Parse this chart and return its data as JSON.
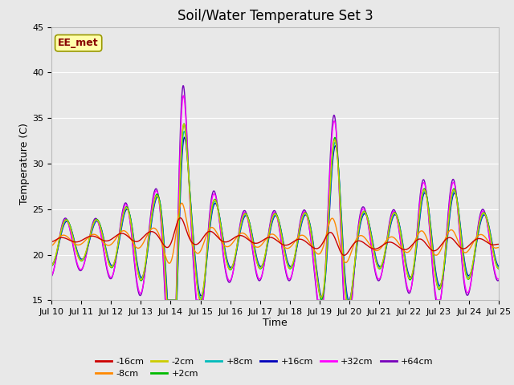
{
  "title": "Soil/Water Temperature Set 3",
  "xlabel": "Time",
  "ylabel": "Temperature (C)",
  "ylim": [
    15,
    45
  ],
  "xlim": [
    0,
    15
  ],
  "xtick_labels": [
    "Jul 10",
    "Jul 11",
    "Jul 12",
    "Jul 13",
    "Jul 14",
    "Jul 15",
    "Jul 16",
    "Jul 17",
    "Jul 18",
    "Jul 19",
    "Jul 20",
    "Jul 21",
    "Jul 22",
    "Jul 23",
    "Jul 24",
    "Jul 25"
  ],
  "series_names": [
    "-16cm",
    "-8cm",
    "-2cm",
    "+2cm",
    "+8cm",
    "+16cm",
    "+32cm",
    "+64cm"
  ],
  "series_colors": [
    "#cc0000",
    "#ff8800",
    "#cccc00",
    "#00bb00",
    "#00bbbb",
    "#0000bb",
    "#ff00ff",
    "#7700bb"
  ],
  "annotation_text": "EE_met",
  "annotation_color": "#880000",
  "annotation_bg": "#ffffaa",
  "annotation_edge": "#999900",
  "bg_color": "#e8e8e8",
  "grid_color": "#ffffff",
  "title_fontsize": 12,
  "tick_fontsize": 8,
  "label_fontsize": 9,
  "legend_fontsize": 8
}
